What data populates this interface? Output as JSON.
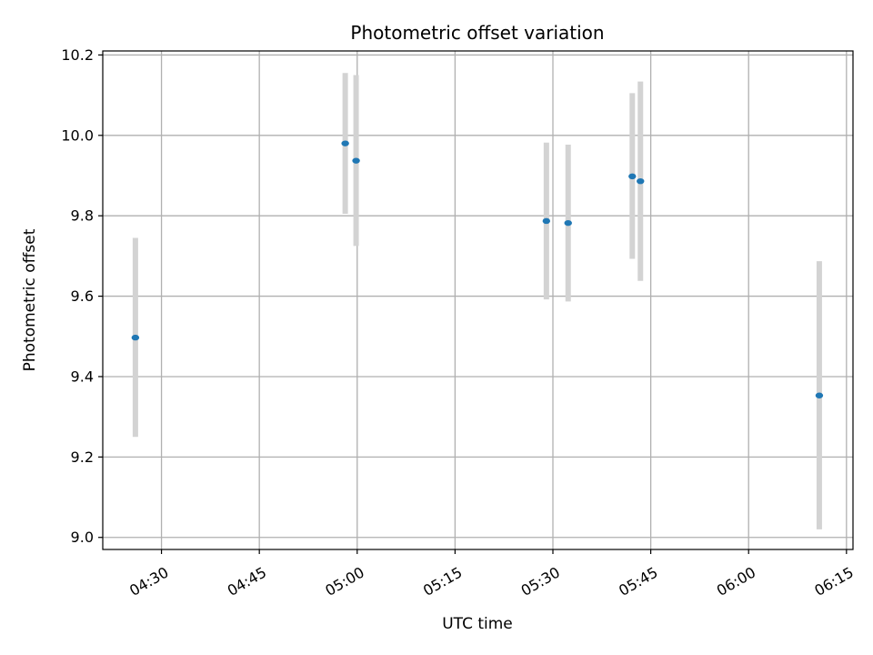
{
  "chart_data": {
    "type": "scatter",
    "title": "Photometric offset variation",
    "xlabel": "UTC time",
    "ylabel": "Photometric offset",
    "x_tick_labels": [
      "04:30",
      "04:45",
      "05:00",
      "05:15",
      "05:30",
      "05:45",
      "06:00",
      "06:15"
    ],
    "y_tick_labels": [
      "9.0",
      "9.2",
      "9.4",
      "9.6",
      "9.8",
      "10.0",
      "10.2"
    ],
    "xlim": [
      "04:21:00",
      "06:16:00"
    ],
    "ylim": [
      8.97,
      10.21
    ],
    "grid": true,
    "x_ticks": [
      "04:30",
      "04:45",
      "05:00",
      "05:15",
      "05:30",
      "05:45",
      "06:00",
      "06:15"
    ],
    "y_ticks": [
      9.0,
      9.2,
      9.4,
      9.6,
      9.8,
      10.0,
      10.2
    ],
    "series": [
      {
        "points": [
          {
            "x": "04:26:00",
            "y": 9.497,
            "yerr_low": 9.25,
            "yerr_high": 9.745
          },
          {
            "x": "04:58:10",
            "y": 9.98,
            "yerr_low": 9.805,
            "yerr_high": 10.155
          },
          {
            "x": "04:59:50",
            "y": 9.937,
            "yerr_low": 9.725,
            "yerr_high": 10.15
          },
          {
            "x": "05:29:00",
            "y": 9.787,
            "yerr_low": 9.592,
            "yerr_high": 9.982
          },
          {
            "x": "05:32:20",
            "y": 9.782,
            "yerr_low": 9.587,
            "yerr_high": 9.977
          },
          {
            "x": "05:42:10",
            "y": 9.898,
            "yerr_low": 9.693,
            "yerr_high": 10.105
          },
          {
            "x": "05:43:25",
            "y": 9.886,
            "yerr_low": 9.638,
            "yerr_high": 10.134
          },
          {
            "x": "06:10:50",
            "y": 9.353,
            "yerr_low": 9.02,
            "yerr_high": 9.687
          }
        ]
      }
    ],
    "colors": {
      "marker": "#1f77b4",
      "errorbar": "#d3d3d3",
      "grid": "#b0b0b0",
      "axes": "#000000"
    }
  }
}
